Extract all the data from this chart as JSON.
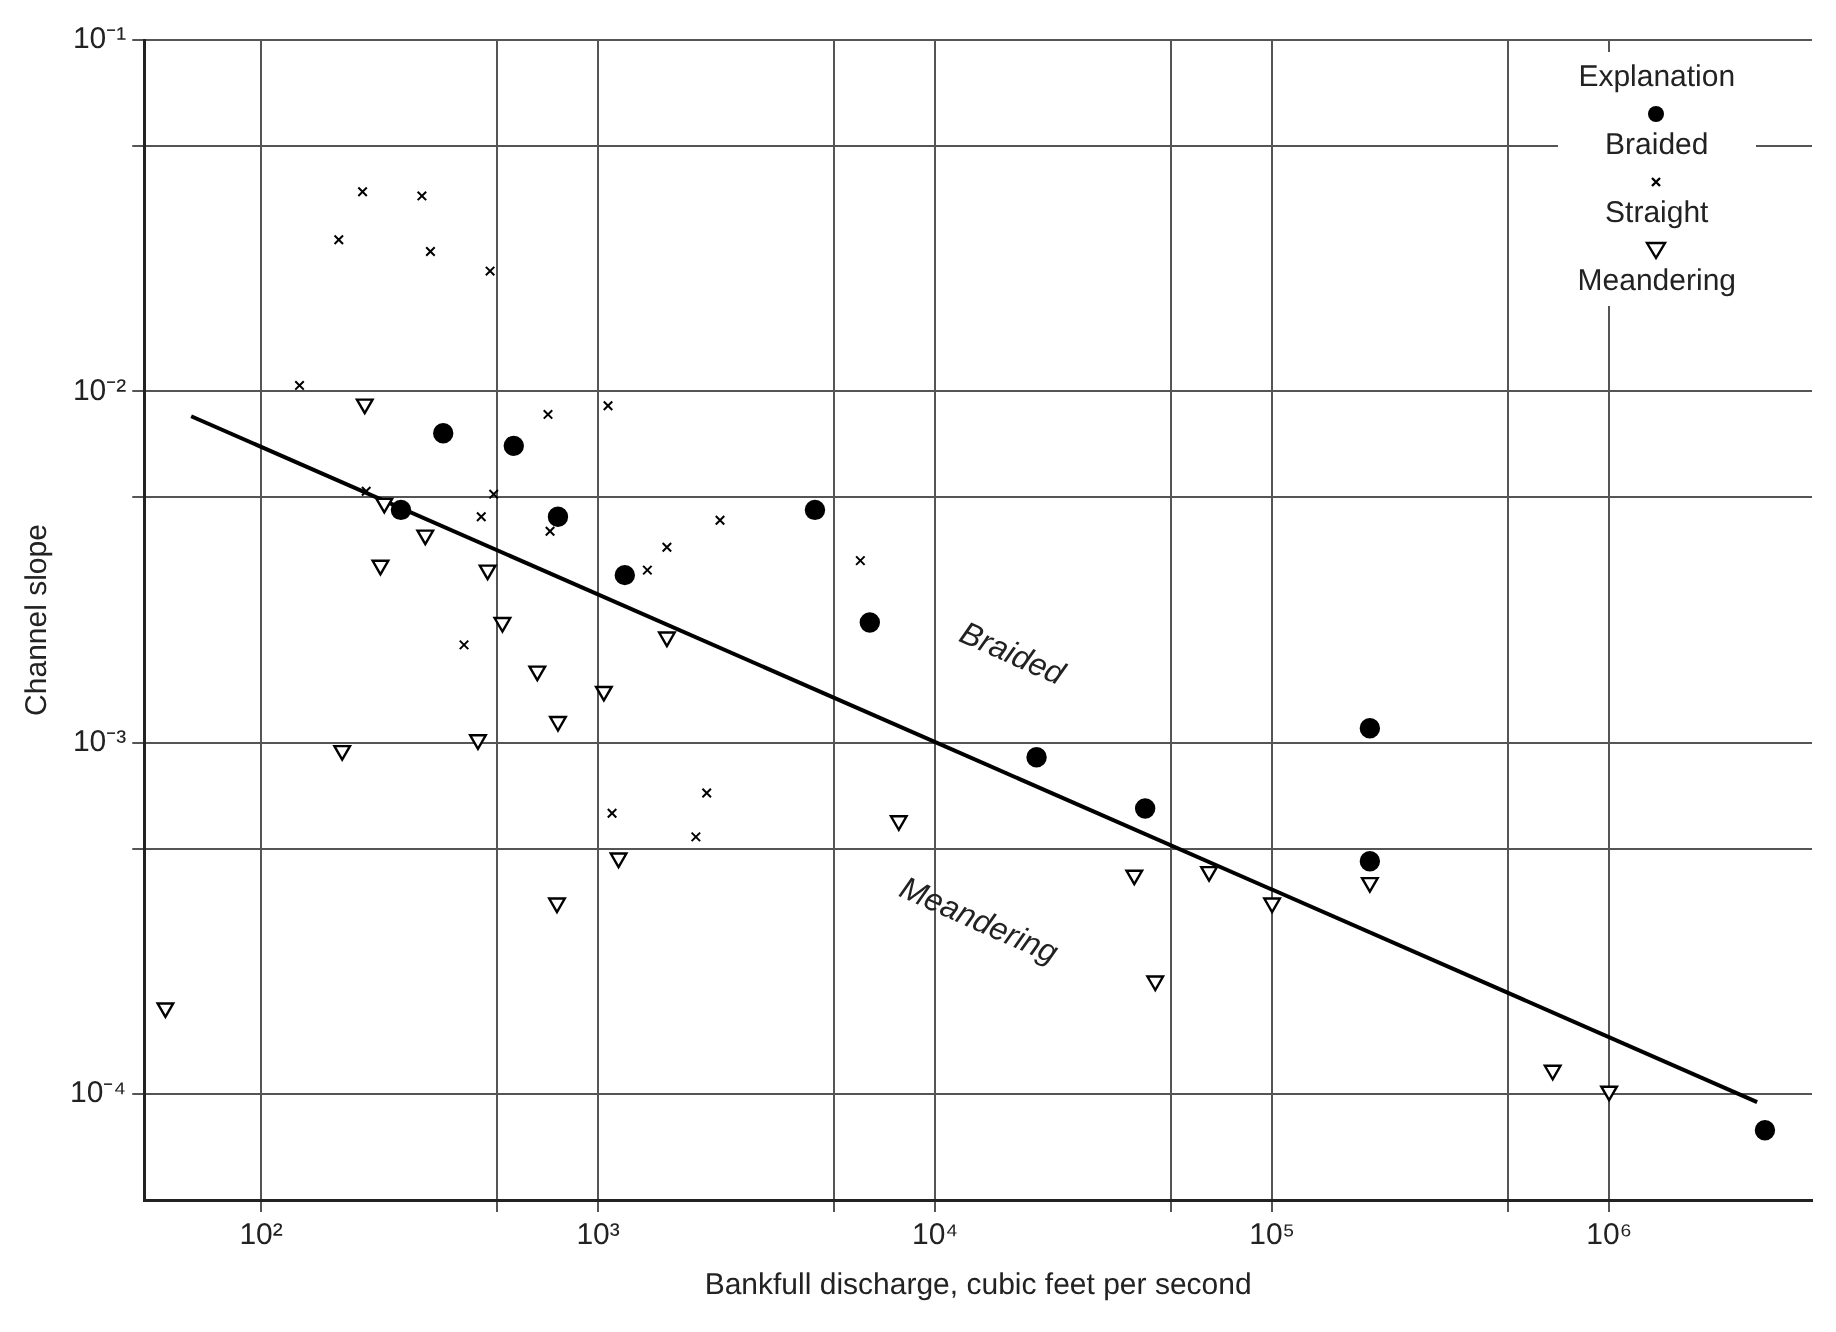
{
  "chart_data": {
    "type": "scatter",
    "xlabel": "Bankfull discharge, cubic feet per second",
    "ylabel": "Channel slope",
    "legend_title": "Explanation",
    "legend": "top right",
    "log": "xy",
    "grid": true,
    "xlim": [
      45,
      4000000
    ],
    "ylim": [
      5e-05,
      0.1
    ],
    "xticks": [
      {
        "value": 100,
        "label": "10²"
      },
      {
        "value": 500,
        "label": null
      },
      {
        "value": 1000,
        "label": "10³"
      },
      {
        "value": 5000,
        "label": null
      },
      {
        "value": 10000,
        "label": "10⁴"
      },
      {
        "value": 50000,
        "label": null
      },
      {
        "value": 100000,
        "label": "10⁵"
      },
      {
        "value": 500000,
        "label": null
      },
      {
        "value": 1000000,
        "label": "10⁶"
      }
    ],
    "yticks": [
      {
        "value": 0.0001,
        "label": "10⁻⁴"
      },
      {
        "value": 0.0005,
        "label": null
      },
      {
        "value": 0.001,
        "label": "10⁻³"
      },
      {
        "value": 0.005,
        "label": null
      },
      {
        "value": 0.01,
        "label": "10⁻²"
      },
      {
        "value": 0.05,
        "label": null
      },
      {
        "value": 0.1,
        "label": "10⁻¹"
      }
    ],
    "series": [
      {
        "name": "Braided",
        "color": "#000000",
        "marker": "circle",
        "x": [
          347,
          562,
          260,
          760,
          1200,
          4400,
          6400,
          20000,
          42000,
          195000,
          195000,
          2900000
        ],
        "values": [
          0.0076,
          0.007,
          0.0046,
          0.0044,
          0.003,
          0.0046,
          0.0022,
          0.00091,
          0.00065,
          0.0011,
          0.00046,
          7.9e-05
        ]
      },
      {
        "name": "Straight",
        "color": "#000000",
        "marker": "cross",
        "x": [
          200,
          300,
          170,
          318,
          478,
          130,
          710,
          1070,
          205,
          490,
          450,
          720,
          2300,
          1600,
          1400,
          6000,
          400,
          1100,
          2100,
          1950
        ],
        "values": [
          0.037,
          0.036,
          0.027,
          0.025,
          0.022,
          0.0104,
          0.0086,
          0.0091,
          0.0052,
          0.0051,
          0.0044,
          0.004,
          0.0043,
          0.0036,
          0.0031,
          0.0033,
          0.0019,
          0.00063,
          0.00072,
          0.00054
        ]
      },
      {
        "name": "Meandering",
        "color": "#000000",
        "marker": "triangle",
        "x": [
          203,
          232,
          307,
          226,
          470,
          520,
          1600,
          660,
          1040,
          760,
          174,
          440,
          7800,
          1150,
          755,
          52,
          39000,
          65000,
          100000,
          195000,
          45000,
          680000,
          1000000
        ],
        "values": [
          0.0092,
          0.0048,
          0.0039,
          0.0032,
          0.0031,
          0.0022,
          0.002,
          0.0016,
          0.0014,
          0.00115,
          0.00095,
          0.00102,
          0.0006,
          0.00047,
          0.00035,
          0.000176,
          0.00042,
          0.00043,
          0.00035,
          0.0004,
          0.00021,
          0.000117,
          0.000102
        ]
      },
      {
        "type": "line",
        "color": "#000000",
        "marker": "none",
        "line_style": "solid",
        "x": [
          62,
          2750000
        ],
        "values": [
          0.0085,
          9.5e-05
        ]
      }
    ],
    "annotations": [
      "Braided",
      "Meandering"
    ]
  }
}
